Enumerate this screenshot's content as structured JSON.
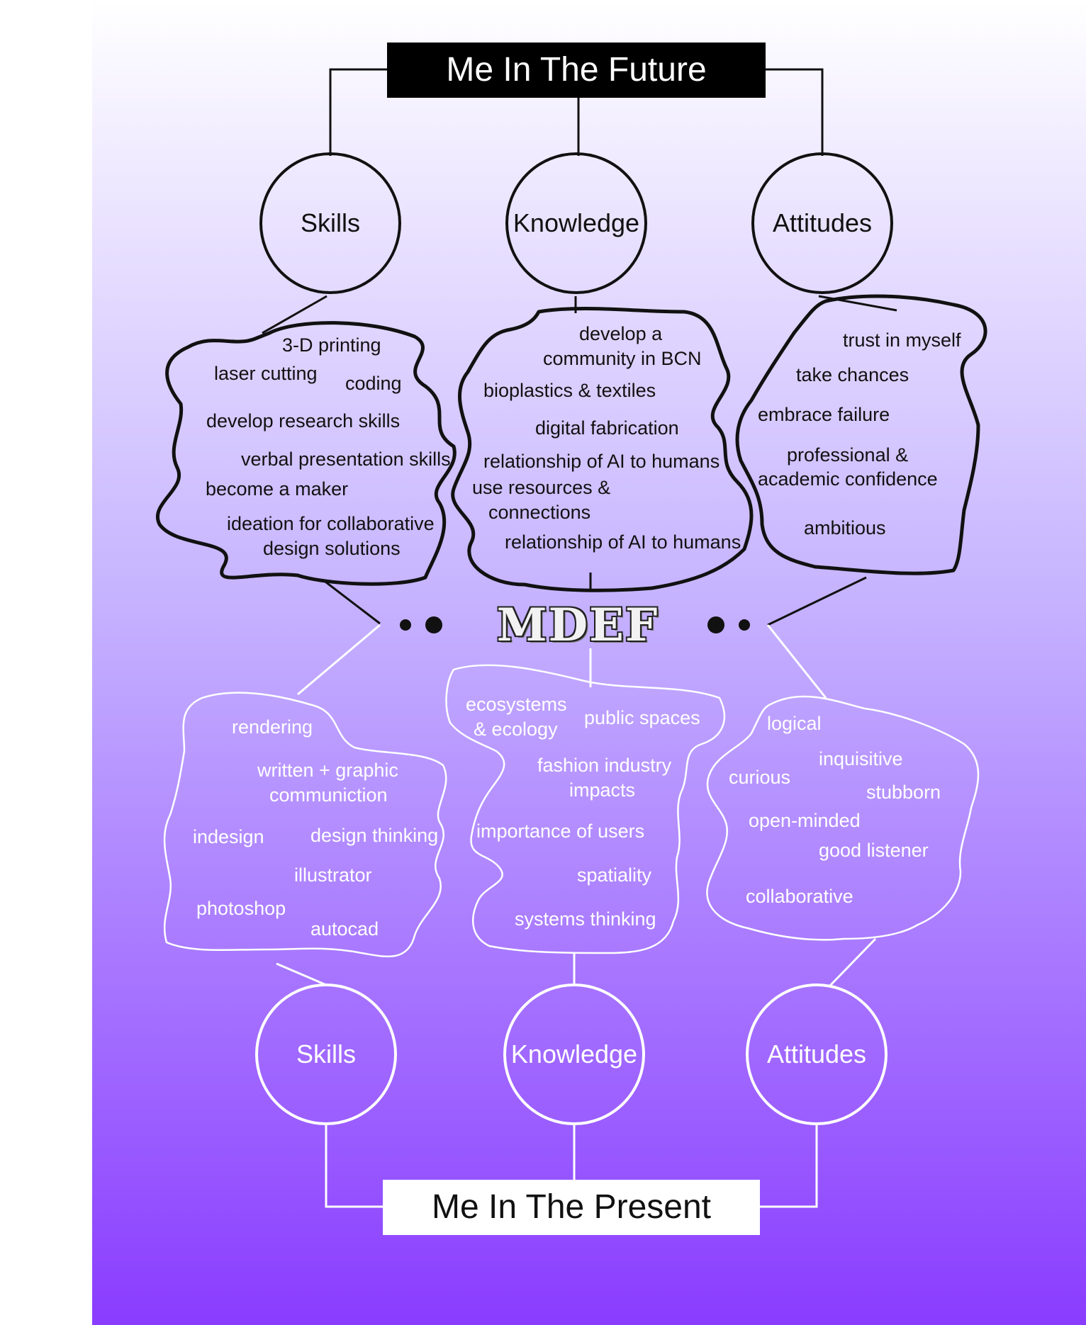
{
  "colors": {
    "gradient_top": "#ffffff",
    "gradient_bottom": "#8a3cff",
    "future_stroke": "#111111",
    "present_stroke": "#ffffff"
  },
  "future": {
    "title": "Me In The Future",
    "categories": {
      "skills": {
        "label": "Skills",
        "items": [
          "3-D printing",
          "laser cutting",
          "coding",
          "develop research skills",
          "verbal presentation skills",
          "become a maker",
          "ideation for collaborative",
          "design solutions"
        ]
      },
      "knowledge": {
        "label": "Knowledge",
        "items": [
          "develop a",
          "community in BCN",
          "bioplastics & textiles",
          "digital fabrication",
          "relationship of AI to humans",
          "use resources &",
          "connections",
          "relationship of AI to humans"
        ]
      },
      "attitudes": {
        "label": "Attitudes",
        "items": [
          "trust in myself",
          "take chances",
          "embrace failure",
          "professional &",
          "academic confidence",
          "ambitious"
        ]
      }
    }
  },
  "logo": {
    "text": "MDEF"
  },
  "present": {
    "title": "Me In The Present",
    "categories": {
      "skills": {
        "label": "Skills",
        "items": [
          "rendering",
          "written + graphic",
          "communiction",
          "indesign",
          "design thinking",
          "illustrator",
          "photoshop",
          "autocad"
        ]
      },
      "knowledge": {
        "label": "Knowledge",
        "items": [
          "ecosystems",
          "& ecology",
          "public spaces",
          "fashion industry",
          "impacts",
          "importance of users",
          "spatiality",
          "systems thinking"
        ]
      },
      "attitudes": {
        "label": "Attitudes",
        "items": [
          "logical",
          "inquisitive",
          "curious",
          "stubborn",
          "open-minded",
          "good listener",
          "collaborative"
        ]
      }
    }
  }
}
